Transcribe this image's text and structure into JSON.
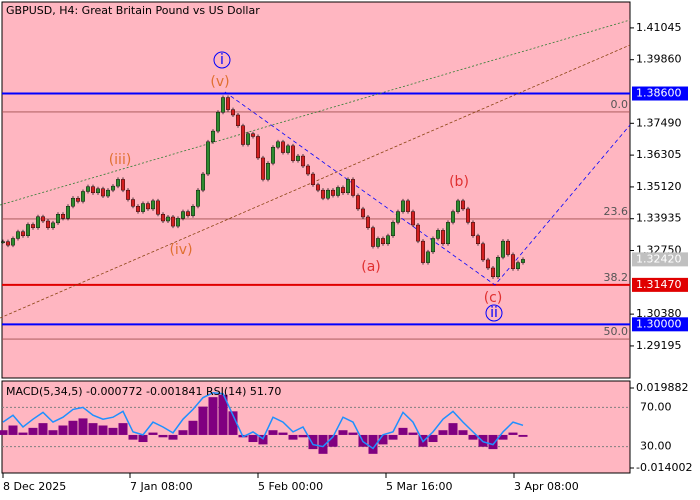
{
  "chart_data": {
    "type": "candlestick",
    "title": "GBPUSD, H4:  Great Britain Pound vs US Dollar",
    "price": {
      "up_color": "#2e8b2e",
      "down_color": "#d42020",
      "values": [
        1.3308,
        1.3295,
        1.332,
        1.3345,
        1.333,
        1.3372,
        1.336,
        1.3401,
        1.3385,
        1.336,
        1.3378,
        1.341,
        1.3395,
        1.344,
        1.347,
        1.3458,
        1.3495,
        1.3513,
        1.349,
        1.3505,
        1.3478,
        1.35,
        1.3515,
        1.354,
        1.35,
        1.3465,
        1.344,
        1.342,
        1.345,
        1.343,
        1.346,
        1.341,
        1.3385,
        1.34,
        1.3366,
        1.3395,
        1.342,
        1.3405,
        1.344,
        1.35,
        1.356,
        1.368,
        1.372,
        1.379,
        1.3845,
        1.38,
        1.378,
        1.374,
        1.367,
        1.371,
        1.37,
        1.362,
        1.354,
        1.36,
        1.366,
        1.368,
        1.364,
        1.3665,
        1.361,
        1.3627,
        1.359,
        1.356,
        1.352,
        1.35,
        1.347,
        1.35,
        1.348,
        1.351,
        1.349,
        1.354,
        1.348,
        1.343,
        1.34,
        1.336,
        1.329,
        1.332,
        1.33,
        1.333,
        1.338,
        1.342,
        1.346,
        1.342,
        1.337,
        1.331,
        1.323,
        1.327,
        1.332,
        1.335,
        1.33,
        1.338,
        1.342,
        1.346,
        1.343,
        1.338,
        1.333,
        1.33,
        1.324,
        1.321,
        1.3177,
        1.325,
        1.331,
        1.326,
        1.3207,
        1.323,
        1.3242
      ]
    },
    "ylim": [
      1.28,
      1.4201
    ],
    "yticks": [
      1.41045,
      {
        "value": 1.3986,
        "label": "1.39860"
      },
      {
        "value": 1.3749,
        "label": "1.37490"
      },
      1.36305,
      {
        "value": 1.3512,
        "label": "1.35120"
      },
      1.33935,
      {
        "value": 1.3275,
        "label": "1.32750"
      },
      {
        "value": 1.3038,
        "label": "1.30380"
      },
      1.29195
    ],
    "levels": [
      {
        "value": 1.386,
        "label": "1.38600",
        "color": "#0000ff",
        "line": true
      },
      {
        "value": 1.3242,
        "label": "1.32420",
        "color": "#c0c0c0",
        "line": false
      },
      {
        "value": 1.3147,
        "label": "1.31470",
        "color": "#e00000",
        "line": true
      },
      {
        "value": 1.3,
        "label": "1.30000",
        "color": "#0000ff",
        "line": true
      }
    ],
    "fib_levels": [
      {
        "value": 1.37914,
        "label": "0.0"
      },
      {
        "value": 1.33926,
        "label": "23.6"
      },
      {
        "value": 1.3147,
        "label": "38.2"
      },
      {
        "value": 1.2945,
        "label": "50.0"
      }
    ],
    "annotations": [
      "i",
      "(v)",
      "(iii)",
      "(iv)",
      "(a)",
      "(b)",
      "(c)",
      "ii"
    ],
    "xticks": [
      {
        "value": 0,
        "label": "8 Dec 2025"
      },
      {
        "value": 25.4,
        "label": "7 Jan 08:00"
      },
      {
        "value": 51,
        "label": "5 Feb 00:00"
      },
      {
        "value": 76.6,
        "label": "5 Mar 16:00"
      },
      {
        "value": 102.2,
        "label": "3 Apr 08:00"
      }
    ],
    "indicator": {
      "title": "MACD(5,34,5) -0.000772 -0.001841 RSI(14) 51.70",
      "macd": {
        "color": "#800080",
        "values": [
          0.002,
          0.004,
          0.001,
          0.003,
          0.005,
          0.002,
          0.004,
          0.006,
          0.007,
          0.005,
          0.004,
          0.003,
          0.005,
          -0.002,
          -0.003,
          0.001,
          -0.001,
          -0.002,
          0.002,
          0.006,
          0.012,
          0.016,
          0.017,
          0.01,
          -0.001,
          -0.003,
          -0.004,
          0.002,
          0.001,
          -0.002,
          -0.001,
          -0.006,
          -0.008,
          -0.005,
          0.002,
          0.001,
          -0.005,
          -0.008,
          -0.004,
          -0.002,
          0.003,
          0.001,
          -0.005,
          -0.003,
          0.002,
          0.005,
          0.002,
          -0.002,
          -0.005,
          -0.006,
          -0.002,
          0.001,
          -0.0008
        ]
      },
      "macd_ylim": [
        -0.014002,
        0.019882
      ],
      "macd_yticks": [
        0.019882,
        -0.014002
      ],
      "rsi": {
        "color": "#1e90ff",
        "values": [
          55,
          62,
          50,
          58,
          65,
          55,
          60,
          68,
          70,
          62,
          58,
          60,
          66,
          45,
          42,
          55,
          50,
          44,
          58,
          68,
          80,
          85,
          84,
          62,
          40,
          45,
          38,
          60,
          55,
          45,
          50,
          32,
          30,
          40,
          60,
          55,
          35,
          28,
          42,
          45,
          65,
          55,
          35,
          45,
          58,
          66,
          55,
          45,
          35,
          32,
          45,
          55,
          51.7
        ]
      },
      "rsi_ylim": [
        4,
        96
      ],
      "rsi_yticks": [
        {
          "value": 70,
          "label": "70.00"
        },
        {
          "value": 30,
          "label": "30.00"
        }
      ]
    }
  }
}
